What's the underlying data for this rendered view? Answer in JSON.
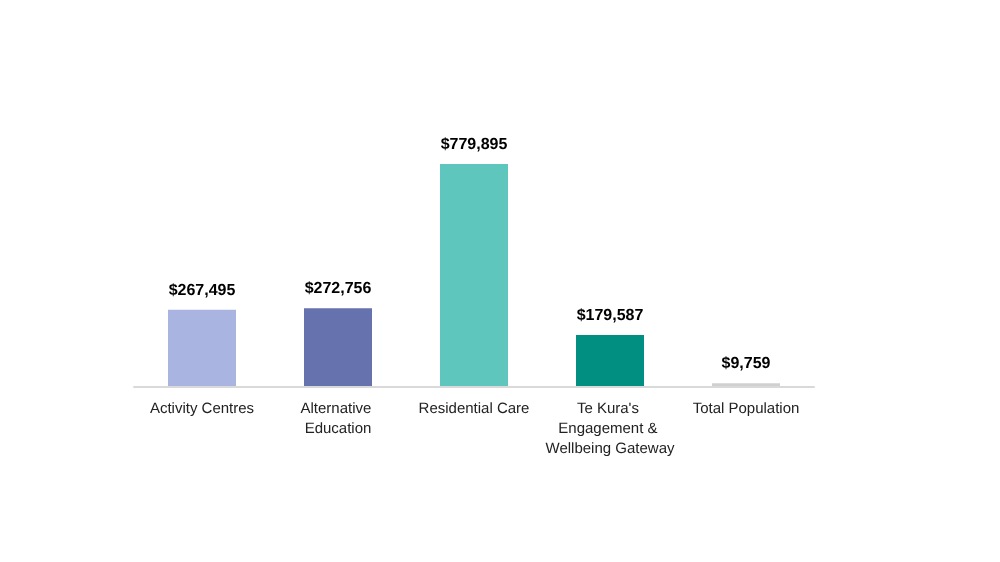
{
  "chart_data": {
    "type": "bar",
    "categories": [
      "Activity Centres",
      "Alternative Education",
      "Residential Care",
      "Te Kura's Engagement & Wellbeing Gateway",
      "Total Population"
    ],
    "values": [
      267495,
      272756,
      779895,
      179587,
      9759
    ],
    "colors": [
      "#aab4e0",
      "#6672ad",
      "#5ec6bc",
      "#008f80",
      "#d0d0d0"
    ],
    "value_labels": [
      "$267,495",
      "$272,756",
      "$779,895",
      "$179,587",
      "$9,759"
    ]
  }
}
